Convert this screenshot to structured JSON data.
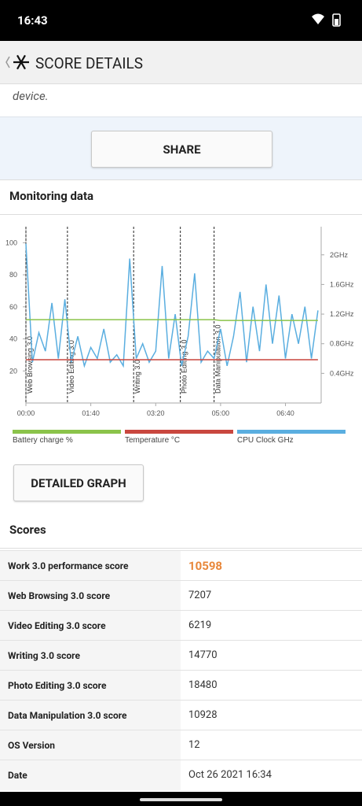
{
  "status_bar": {
    "time": "16:43"
  },
  "header": {
    "title": "SCORE DETAILS"
  },
  "description_tail": "device.",
  "share_button": "SHARE",
  "monitoring": {
    "title": "Monitoring data",
    "button": "DETAILED GRAPH"
  },
  "chart_data": {
    "type": "line",
    "x": [
      0,
      10,
      20,
      30,
      40,
      50,
      60,
      70,
      80,
      90,
      100,
      110,
      120,
      130,
      140,
      150,
      160,
      170,
      180,
      190,
      200,
      210,
      220,
      230,
      240,
      250,
      260,
      270,
      280,
      290,
      300,
      310,
      320,
      330,
      340,
      350,
      360,
      370,
      380,
      390,
      400,
      410,
      420,
      430,
      440,
      450
    ],
    "xlim": [
      0,
      455
    ],
    "xticks": [
      {
        "value": 0,
        "label": "00:00"
      },
      {
        "value": 100,
        "label": "01:40"
      },
      {
        "value": 200,
        "label": "03:20"
      },
      {
        "value": 300,
        "label": "05:00"
      },
      {
        "value": 400,
        "label": "06:40"
      }
    ],
    "ylim": [
      0,
      110
    ],
    "yticks": [
      20,
      40,
      60,
      80,
      100
    ],
    "y2lim": [
      0,
      2.38
    ],
    "y2ticks": [
      {
        "value": 0.4,
        "label": "0.4GHz"
      },
      {
        "value": 0.8,
        "label": "0.8GHz"
      },
      {
        "value": 1.2,
        "label": "1.2GHz"
      },
      {
        "value": 1.6,
        "label": "1.6GHz"
      },
      {
        "value": 2,
        "label": "2GHz"
      }
    ],
    "sections": [
      {
        "name": "Web Browsing 3.0",
        "x": 0
      },
      {
        "name": "Video Editing 3.0",
        "x": 64
      },
      {
        "name": "Writing 3.0",
        "x": 166
      },
      {
        "name": "Photo Editing 3.0",
        "x": 238
      },
      {
        "name": "Data Manipulation 3.0",
        "x": 290
      }
    ],
    "series": [
      {
        "name": "Battery charge %",
        "color": "#8bc34a",
        "values": [
          52,
          52,
          52,
          52,
          52,
          52,
          52,
          52,
          52,
          52,
          52,
          52,
          52,
          52,
          52,
          52,
          52,
          52,
          52,
          52,
          52,
          52,
          52,
          52,
          52,
          52,
          52,
          52,
          52,
          52,
          51.5,
          51.5,
          51.5,
          51.5,
          51.5,
          51.5,
          51.5,
          51.5,
          51.5,
          51.5,
          51.5,
          51.5,
          51.5,
          51.5,
          51.5,
          51.5
        ]
      },
      {
        "name": "Temperature °C",
        "color": "#c9473f",
        "values": [
          27,
          27,
          27,
          27,
          27,
          27,
          27,
          27,
          27,
          27,
          27,
          27,
          27,
          27,
          27,
          27,
          27,
          27,
          27,
          27,
          27,
          27,
          27,
          27,
          27,
          27,
          27,
          27,
          27,
          27,
          27,
          27,
          27,
          27,
          27,
          27,
          27,
          27,
          27,
          27,
          27,
          27,
          27,
          27,
          27,
          27
        ]
      },
      {
        "name": "CPU Clock GHz",
        "color": "#5aaee0",
        "axis": "y2",
        "values": [
          2.15,
          0.55,
          0.95,
          0.7,
          1.35,
          0.6,
          1.4,
          0.55,
          0.9,
          0.5,
          0.75,
          0.6,
          1.0,
          0.55,
          0.65,
          0.5,
          1.95,
          0.6,
          0.8,
          0.55,
          0.7,
          1.85,
          0.6,
          1.2,
          0.5,
          0.9,
          1.75,
          0.55,
          0.7,
          0.6,
          1.0,
          0.5,
          0.9,
          1.5,
          0.55,
          1.3,
          0.7,
          1.6,
          0.8,
          1.45,
          0.6,
          1.2,
          0.8,
          1.3,
          0.6,
          1.25
        ]
      }
    ]
  },
  "scores": {
    "title": "Scores",
    "rows": [
      [
        "Work 3.0 performance score",
        10598
      ],
      [
        "Web Browsing 3.0 score",
        7207
      ],
      [
        "Video Editing 3.0 score",
        6219
      ],
      [
        "Writing 3.0 score",
        14770
      ],
      [
        "Photo Editing 3.0 score",
        18480
      ],
      [
        "Data Manipulation 3.0 score",
        10928
      ],
      [
        "OS Version",
        12
      ],
      [
        "Date",
        "Oct 26 2021 16:34"
      ]
    ]
  }
}
